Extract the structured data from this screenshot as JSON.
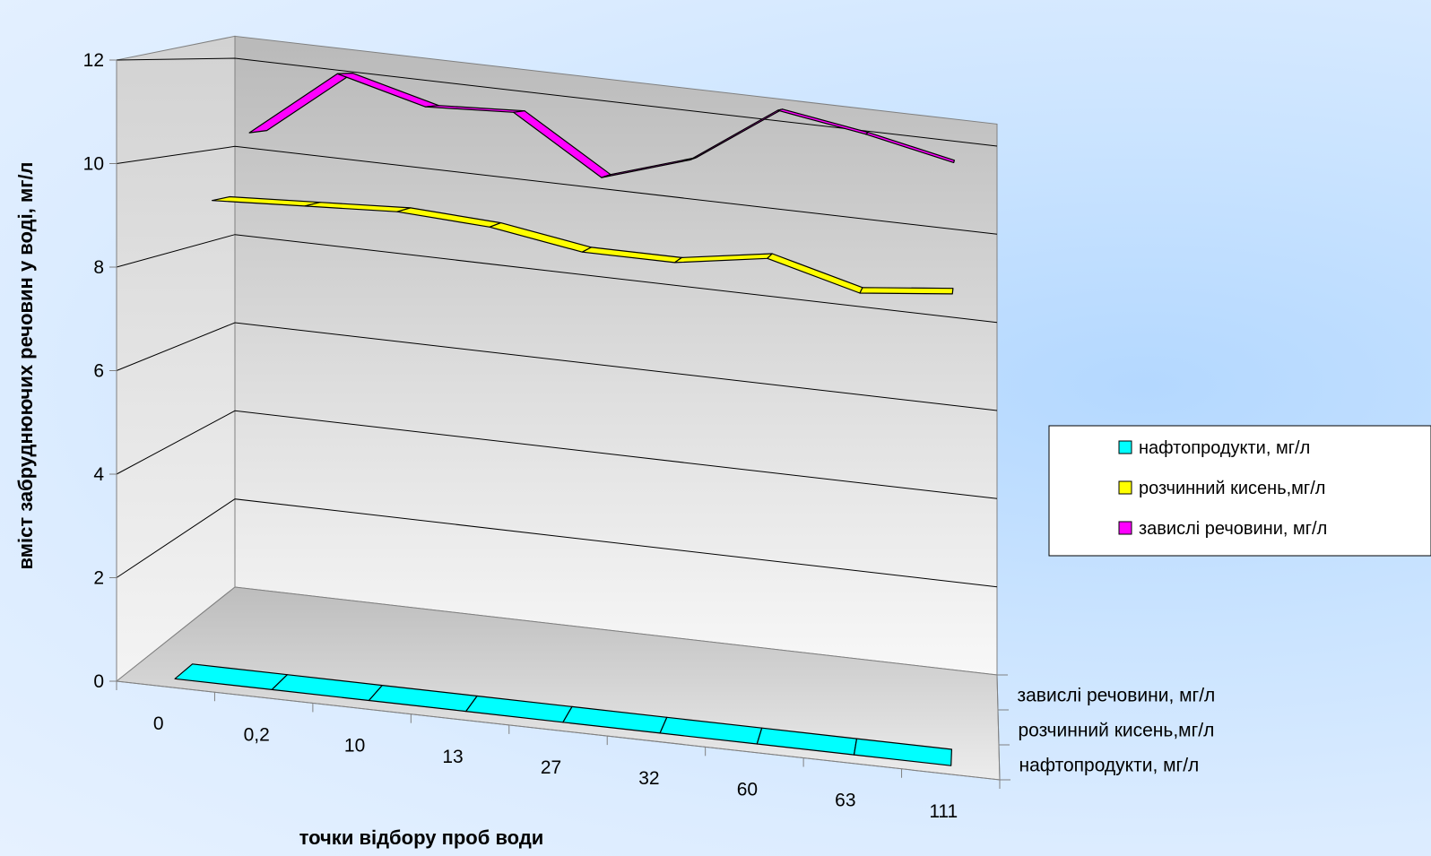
{
  "chart_data": {
    "type": "line",
    "variant": "3d-ribbon",
    "xlabel": "точки відбору проб води",
    "ylabel": "вміст забруднюючих речовин у воді, мг/л",
    "categories": [
      "0",
      "0,2",
      "10",
      "13",
      "27",
      "32",
      "60",
      "63",
      "111"
    ],
    "ylim": [
      0,
      12
    ],
    "yticks": [
      "0",
      "2",
      "4",
      "6",
      "8",
      "10",
      "12"
    ],
    "grid": true,
    "legend_position": "right",
    "depth_labels": [
      "завислі речовини, мг/л",
      "розчинний кисень,мг/л",
      "нафтопродукти, мг/л"
    ],
    "series": [
      {
        "name": "нафтопродукти, мг/л",
        "color": "#00ffff",
        "values": [
          0,
          0,
          0,
          0,
          0,
          0,
          0,
          0,
          0
        ]
      },
      {
        "name": "розчинний кисень,мг/л",
        "color": "#ffff00",
        "values": [
          9.2,
          9.3,
          9.4,
          9.3,
          9.0,
          9.0,
          9.3,
          8.8,
          9.0
        ]
      },
      {
        "name": "завислі речовини, мг/л",
        "color": "#ff00ff",
        "values": [
          10.5,
          12.0,
          11.5,
          11.6,
          10.4,
          11.0,
          12.3,
          12.0,
          11.6
        ]
      }
    ]
  }
}
